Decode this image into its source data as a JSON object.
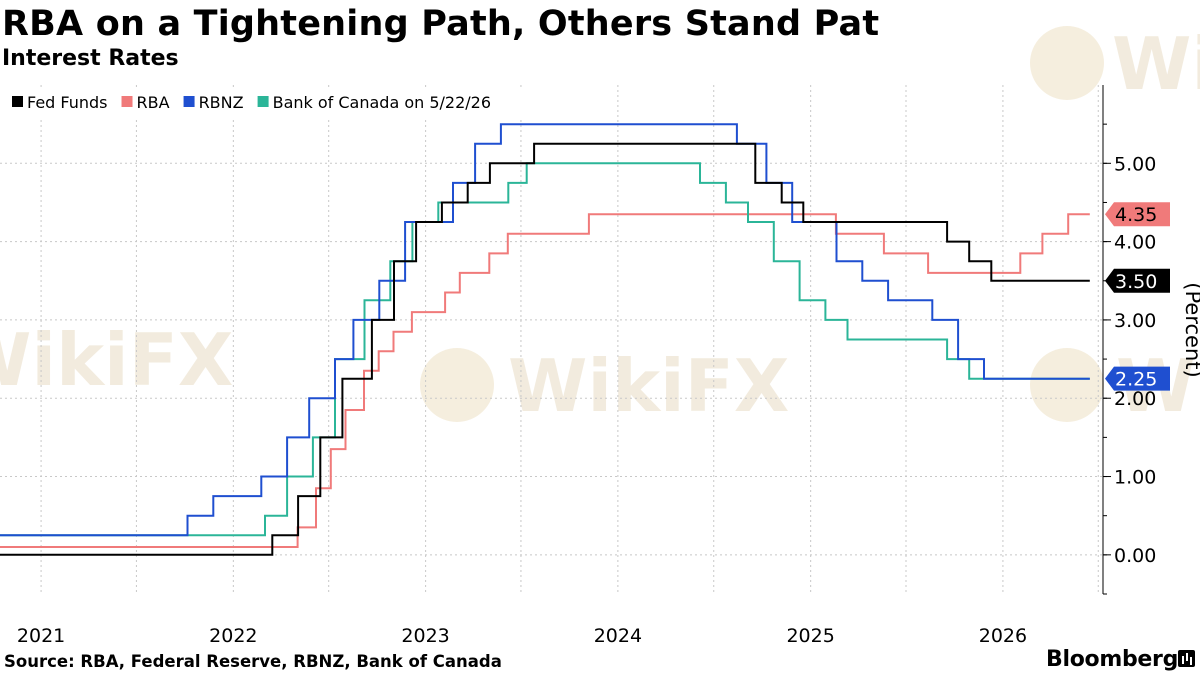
{
  "header": {
    "title": "RBA on a Tightening Path, Others Stand Pat",
    "subtitle": "Interest Rates"
  },
  "footer": {
    "source": "Source: RBA, Federal Reserve, RBNZ, Bank of Canada",
    "brand": "Bloomberg"
  },
  "watermark": {
    "text": "WikiFX"
  },
  "chart_data": {
    "type": "line",
    "title": "RBA on a Tightening Path, Others Stand Pat",
    "subtitle": "Interest Rates",
    "ylabel": "(Percent)",
    "ylim": [
      -0.5,
      6.0
    ],
    "yticks": [
      "0.00",
      "1.00",
      "2.00",
      "3.00",
      "4.00",
      "5.00"
    ],
    "xticks": [
      "2021",
      "2022",
      "2023",
      "2024",
      "2025",
      "2026"
    ],
    "xlim": [
      "2020-10-15",
      "2026-07-10"
    ],
    "grid": true,
    "legend": "top-left",
    "step": true,
    "series": [
      {
        "name": "Fed Funds",
        "color": "#000000",
        "end_label": "3.50",
        "points": [
          [
            "2020-10-15",
            0.0
          ],
          [
            "2022-03-16",
            0.25
          ],
          [
            "2022-05-04",
            0.75
          ],
          [
            "2022-06-15",
            1.5
          ],
          [
            "2022-07-27",
            2.25
          ],
          [
            "2022-09-21",
            3.0
          ],
          [
            "2022-11-02",
            3.75
          ],
          [
            "2022-12-14",
            4.25
          ],
          [
            "2023-02-01",
            4.5
          ],
          [
            "2023-03-22",
            4.75
          ],
          [
            "2023-05-03",
            5.0
          ],
          [
            "2023-07-26",
            5.25
          ],
          [
            "2024-09-18",
            4.75
          ],
          [
            "2024-11-07",
            4.5
          ],
          [
            "2024-12-18",
            4.25
          ],
          [
            "2025-09-17",
            4.0
          ],
          [
            "2025-10-29",
            3.75
          ],
          [
            "2025-12-10",
            3.5
          ],
          [
            "2026-06-15",
            3.5
          ]
        ]
      },
      {
        "name": "RBA",
        "color": "#f07a7a",
        "end_label": "4.35",
        "points": [
          [
            "2020-10-15",
            0.1
          ],
          [
            "2022-05-03",
            0.35
          ],
          [
            "2022-06-07",
            0.85
          ],
          [
            "2022-07-05",
            1.35
          ],
          [
            "2022-08-02",
            1.85
          ],
          [
            "2022-09-06",
            2.35
          ],
          [
            "2022-10-04",
            2.6
          ],
          [
            "2022-11-01",
            2.85
          ],
          [
            "2022-12-06",
            3.1
          ],
          [
            "2023-02-07",
            3.35
          ],
          [
            "2023-03-07",
            3.6
          ],
          [
            "2023-05-02",
            3.85
          ],
          [
            "2023-06-06",
            4.1
          ],
          [
            "2023-11-07",
            4.35
          ],
          [
            "2025-02-18",
            4.1
          ],
          [
            "2025-05-20",
            3.85
          ],
          [
            "2025-08-12",
            3.6
          ],
          [
            "2026-02-03",
            3.85
          ],
          [
            "2026-03-17",
            4.1
          ],
          [
            "2026-05-05",
            4.35
          ],
          [
            "2026-06-15",
            4.35
          ]
        ]
      },
      {
        "name": "RBNZ",
        "color": "#1f4fd0",
        "end_label": "2.25",
        "points": [
          [
            "2020-10-15",
            0.25
          ],
          [
            "2021-10-06",
            0.5
          ],
          [
            "2021-11-24",
            0.75
          ],
          [
            "2022-02-23",
            1.0
          ],
          [
            "2022-04-13",
            1.5
          ],
          [
            "2022-05-25",
            2.0
          ],
          [
            "2022-07-13",
            2.5
          ],
          [
            "2022-08-17",
            3.0
          ],
          [
            "2022-10-05",
            3.5
          ],
          [
            "2022-11-23",
            4.25
          ],
          [
            "2023-02-22",
            4.75
          ],
          [
            "2023-04-05",
            5.25
          ],
          [
            "2023-05-24",
            5.5
          ],
          [
            "2024-08-14",
            5.25
          ],
          [
            "2024-10-09",
            4.75
          ],
          [
            "2024-11-27",
            4.25
          ],
          [
            "2025-02-19",
            3.75
          ],
          [
            "2025-04-09",
            3.5
          ],
          [
            "2025-05-28",
            3.25
          ],
          [
            "2025-08-20",
            3.0
          ],
          [
            "2025-10-08",
            2.5
          ],
          [
            "2025-11-26",
            2.25
          ],
          [
            "2026-06-15",
            2.25
          ]
        ]
      },
      {
        "name": "Bank of Canada on 5/22/26",
        "color": "#2bb598",
        "end_label": "",
        "points": [
          [
            "2020-10-15",
            0.25
          ],
          [
            "2022-03-02",
            0.5
          ],
          [
            "2022-04-13",
            1.0
          ],
          [
            "2022-06-01",
            1.5
          ],
          [
            "2022-07-13",
            2.5
          ],
          [
            "2022-09-07",
            3.25
          ],
          [
            "2022-10-26",
            3.75
          ],
          [
            "2022-12-07",
            4.25
          ],
          [
            "2023-01-25",
            4.5
          ],
          [
            "2023-06-07",
            4.75
          ],
          [
            "2023-07-12",
            5.0
          ],
          [
            "2024-06-05",
            4.75
          ],
          [
            "2024-07-24",
            4.5
          ],
          [
            "2024-09-04",
            4.25
          ],
          [
            "2024-10-23",
            3.75
          ],
          [
            "2024-12-11",
            3.25
          ],
          [
            "2025-01-29",
            3.0
          ],
          [
            "2025-03-12",
            2.75
          ],
          [
            "2025-09-17",
            2.5
          ],
          [
            "2025-10-29",
            2.25
          ],
          [
            "2026-06-15",
            2.25
          ]
        ]
      }
    ]
  }
}
